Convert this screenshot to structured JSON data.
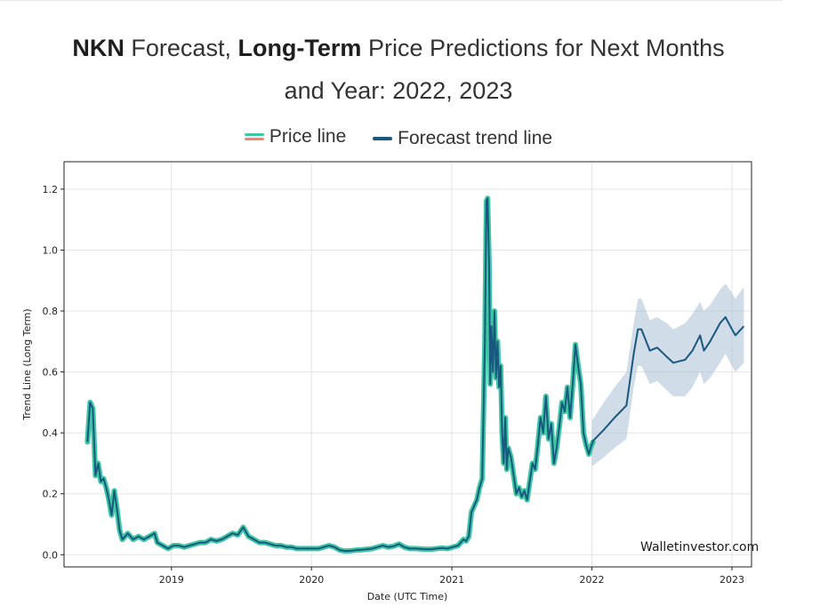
{
  "page": {
    "title_part1": "NKN",
    "title_part2": " Forecast, ",
    "title_part3": "Long-Term",
    "title_part4": " Price Predictions for Next Months",
    "title_line2": "and Year: 2022, 2023"
  },
  "chart_data": {
    "type": "line",
    "xlabel": "Date (UTC Time)",
    "ylabel": "Trend Line (Long Term)",
    "watermark": "Walletinvestor.com",
    "xlim": [
      "2018-03-27",
      "2023-02-21"
    ],
    "ylim": [
      -0.04,
      1.29
    ],
    "x_ticks": [
      "2019-01-01",
      "2020-01-01",
      "2021-01-01",
      "2022-01-01",
      "2023-01-01"
    ],
    "x_tick_labels": [
      "2019",
      "2020",
      "2021",
      "2022",
      "2023"
    ],
    "y_ticks": [
      0.0,
      0.2,
      0.4,
      0.6,
      0.8,
      1.0,
      1.2
    ],
    "y_tick_labels": [
      "0.0",
      "0.2",
      "0.4",
      "0.6",
      "0.8",
      "1.0",
      "1.2"
    ],
    "grid": true,
    "legend": {
      "placement": "top-center",
      "entries": [
        "Price line",
        "Forecast trend line"
      ]
    },
    "colors": {
      "price": "#3ec7a3",
      "price_alt": "#f4846a",
      "trend": "#18587f",
      "band": "#a9c0d3",
      "grid": "#e3e3e3"
    },
    "series": [
      {
        "name": "Price line",
        "points": [
          [
            "2018-05-27",
            0.37
          ],
          [
            "2018-06-03",
            0.5
          ],
          [
            "2018-06-10",
            0.48
          ],
          [
            "2018-06-17",
            0.26
          ],
          [
            "2018-06-24",
            0.3
          ],
          [
            "2018-07-01",
            0.24
          ],
          [
            "2018-07-08",
            0.25
          ],
          [
            "2018-07-15",
            0.22
          ],
          [
            "2018-07-22",
            0.18
          ],
          [
            "2018-07-29",
            0.13
          ],
          [
            "2018-08-05",
            0.21
          ],
          [
            "2018-08-12",
            0.15
          ],
          [
            "2018-08-19",
            0.08
          ],
          [
            "2018-08-26",
            0.05
          ],
          [
            "2018-09-09",
            0.07
          ],
          [
            "2018-09-23",
            0.05
          ],
          [
            "2018-10-07",
            0.06
          ],
          [
            "2018-10-21",
            0.05
          ],
          [
            "2018-11-04",
            0.06
          ],
          [
            "2018-11-18",
            0.07
          ],
          [
            "2018-11-25",
            0.04
          ],
          [
            "2018-12-09",
            0.03
          ],
          [
            "2018-12-23",
            0.02
          ],
          [
            "2019-01-06",
            0.03
          ],
          [
            "2019-01-20",
            0.03
          ],
          [
            "2019-02-03",
            0.025
          ],
          [
            "2019-02-17",
            0.03
          ],
          [
            "2019-03-03",
            0.035
          ],
          [
            "2019-03-17",
            0.04
          ],
          [
            "2019-03-31",
            0.04
          ],
          [
            "2019-04-14",
            0.05
          ],
          [
            "2019-04-28",
            0.045
          ],
          [
            "2019-05-12",
            0.05
          ],
          [
            "2019-05-26",
            0.06
          ],
          [
            "2019-06-09",
            0.07
          ],
          [
            "2019-06-23",
            0.065
          ],
          [
            "2019-07-07",
            0.09
          ],
          [
            "2019-07-21",
            0.06
          ],
          [
            "2019-08-04",
            0.05
          ],
          [
            "2019-08-18",
            0.04
          ],
          [
            "2019-09-01",
            0.04
          ],
          [
            "2019-09-15",
            0.035
          ],
          [
            "2019-09-29",
            0.03
          ],
          [
            "2019-10-13",
            0.03
          ],
          [
            "2019-10-27",
            0.025
          ],
          [
            "2019-11-10",
            0.025
          ],
          [
            "2019-11-24",
            0.02
          ],
          [
            "2019-12-08",
            0.02
          ],
          [
            "2019-12-22",
            0.02
          ],
          [
            "2020-01-05",
            0.02
          ],
          [
            "2020-01-19",
            0.02
          ],
          [
            "2020-02-02",
            0.025
          ],
          [
            "2020-02-16",
            0.03
          ],
          [
            "2020-03-01",
            0.025
          ],
          [
            "2020-03-15",
            0.015
          ],
          [
            "2020-03-29",
            0.012
          ],
          [
            "2020-04-12",
            0.013
          ],
          [
            "2020-04-26",
            0.015
          ],
          [
            "2020-05-10",
            0.016
          ],
          [
            "2020-05-24",
            0.018
          ],
          [
            "2020-06-07",
            0.02
          ],
          [
            "2020-06-21",
            0.025
          ],
          [
            "2020-07-05",
            0.03
          ],
          [
            "2020-07-19",
            0.025
          ],
          [
            "2020-08-02",
            0.028
          ],
          [
            "2020-08-16",
            0.035
          ],
          [
            "2020-08-30",
            0.025
          ],
          [
            "2020-09-13",
            0.02
          ],
          [
            "2020-09-27",
            0.02
          ],
          [
            "2020-10-11",
            0.019
          ],
          [
            "2020-10-25",
            0.018
          ],
          [
            "2020-11-08",
            0.018
          ],
          [
            "2020-11-22",
            0.02
          ],
          [
            "2020-12-06",
            0.022
          ],
          [
            "2020-12-20",
            0.02
          ],
          [
            "2021-01-03",
            0.025
          ],
          [
            "2021-01-17",
            0.03
          ],
          [
            "2021-01-31",
            0.05
          ],
          [
            "2021-02-07",
            0.045
          ],
          [
            "2021-02-14",
            0.06
          ],
          [
            "2021-02-21",
            0.14
          ],
          [
            "2021-02-28",
            0.16
          ],
          [
            "2021-03-07",
            0.18
          ],
          [
            "2021-03-14",
            0.22
          ],
          [
            "2021-03-21",
            0.25
          ],
          [
            "2021-03-28",
            0.7
          ],
          [
            "2021-04-01",
            1.16
          ],
          [
            "2021-04-04",
            1.17
          ],
          [
            "2021-04-08",
            0.95
          ],
          [
            "2021-04-11",
            0.56
          ],
          [
            "2021-04-14",
            0.75
          ],
          [
            "2021-04-18",
            0.6
          ],
          [
            "2021-04-22",
            0.8
          ],
          [
            "2021-04-26",
            0.58
          ],
          [
            "2021-04-30",
            0.7
          ],
          [
            "2021-05-04",
            0.55
          ],
          [
            "2021-05-08",
            0.62
          ],
          [
            "2021-05-12",
            0.4
          ],
          [
            "2021-05-16",
            0.3
          ],
          [
            "2021-05-20",
            0.45
          ],
          [
            "2021-05-24",
            0.28
          ],
          [
            "2021-05-28",
            0.35
          ],
          [
            "2021-06-04",
            0.32
          ],
          [
            "2021-06-11",
            0.26
          ],
          [
            "2021-06-18",
            0.2
          ],
          [
            "2021-06-25",
            0.22
          ],
          [
            "2021-07-02",
            0.19
          ],
          [
            "2021-07-09",
            0.21
          ],
          [
            "2021-07-16",
            0.18
          ],
          [
            "2021-07-23",
            0.24
          ],
          [
            "2021-07-30",
            0.3
          ],
          [
            "2021-08-06",
            0.28
          ],
          [
            "2021-08-13",
            0.36
          ],
          [
            "2021-08-20",
            0.45
          ],
          [
            "2021-08-27",
            0.4
          ],
          [
            "2021-09-03",
            0.52
          ],
          [
            "2021-09-10",
            0.38
          ],
          [
            "2021-09-17",
            0.43
          ],
          [
            "2021-09-24",
            0.3
          ],
          [
            "2021-10-01",
            0.35
          ],
          [
            "2021-10-08",
            0.42
          ],
          [
            "2021-10-15",
            0.5
          ],
          [
            "2021-10-22",
            0.47
          ],
          [
            "2021-10-29",
            0.55
          ],
          [
            "2021-11-05",
            0.45
          ],
          [
            "2021-11-12",
            0.56
          ],
          [
            "2021-11-19",
            0.69
          ],
          [
            "2021-11-26",
            0.62
          ],
          [
            "2021-12-03",
            0.56
          ],
          [
            "2021-12-10",
            0.4
          ],
          [
            "2021-12-17",
            0.36
          ],
          [
            "2021-12-24",
            0.33
          ],
          [
            "2021-12-31",
            0.36
          ],
          [
            "2022-01-04",
            0.37
          ]
        ]
      },
      {
        "name": "Forecast trend line",
        "points": [
          [
            "2022-01-01",
            0.37
          ],
          [
            "2022-02-01",
            0.41
          ],
          [
            "2022-03-01",
            0.45
          ],
          [
            "2022-04-01",
            0.49
          ],
          [
            "2022-04-20",
            0.66
          ],
          [
            "2022-05-01",
            0.74
          ],
          [
            "2022-05-10",
            0.74
          ],
          [
            "2022-06-01",
            0.67
          ],
          [
            "2022-06-20",
            0.68
          ],
          [
            "2022-07-15",
            0.65
          ],
          [
            "2022-08-01",
            0.63
          ],
          [
            "2022-09-01",
            0.64
          ],
          [
            "2022-09-20",
            0.67
          ],
          [
            "2022-10-10",
            0.72
          ],
          [
            "2022-10-20",
            0.67
          ],
          [
            "2022-11-05",
            0.7
          ],
          [
            "2022-12-01",
            0.76
          ],
          [
            "2022-12-15",
            0.78
          ],
          [
            "2023-01-01",
            0.74
          ],
          [
            "2023-01-10",
            0.72
          ],
          [
            "2023-02-01",
            0.75
          ]
        ],
        "upper": [
          0.44,
          0.5,
          0.55,
          0.6,
          0.76,
          0.84,
          0.84,
          0.77,
          0.78,
          0.76,
          0.74,
          0.76,
          0.79,
          0.83,
          0.8,
          0.82,
          0.87,
          0.89,
          0.86,
          0.84,
          0.88
        ],
        "lower": [
          0.29,
          0.32,
          0.35,
          0.38,
          0.55,
          0.62,
          0.62,
          0.56,
          0.57,
          0.54,
          0.52,
          0.52,
          0.55,
          0.6,
          0.56,
          0.58,
          0.63,
          0.66,
          0.62,
          0.6,
          0.63
        ]
      }
    ]
  }
}
